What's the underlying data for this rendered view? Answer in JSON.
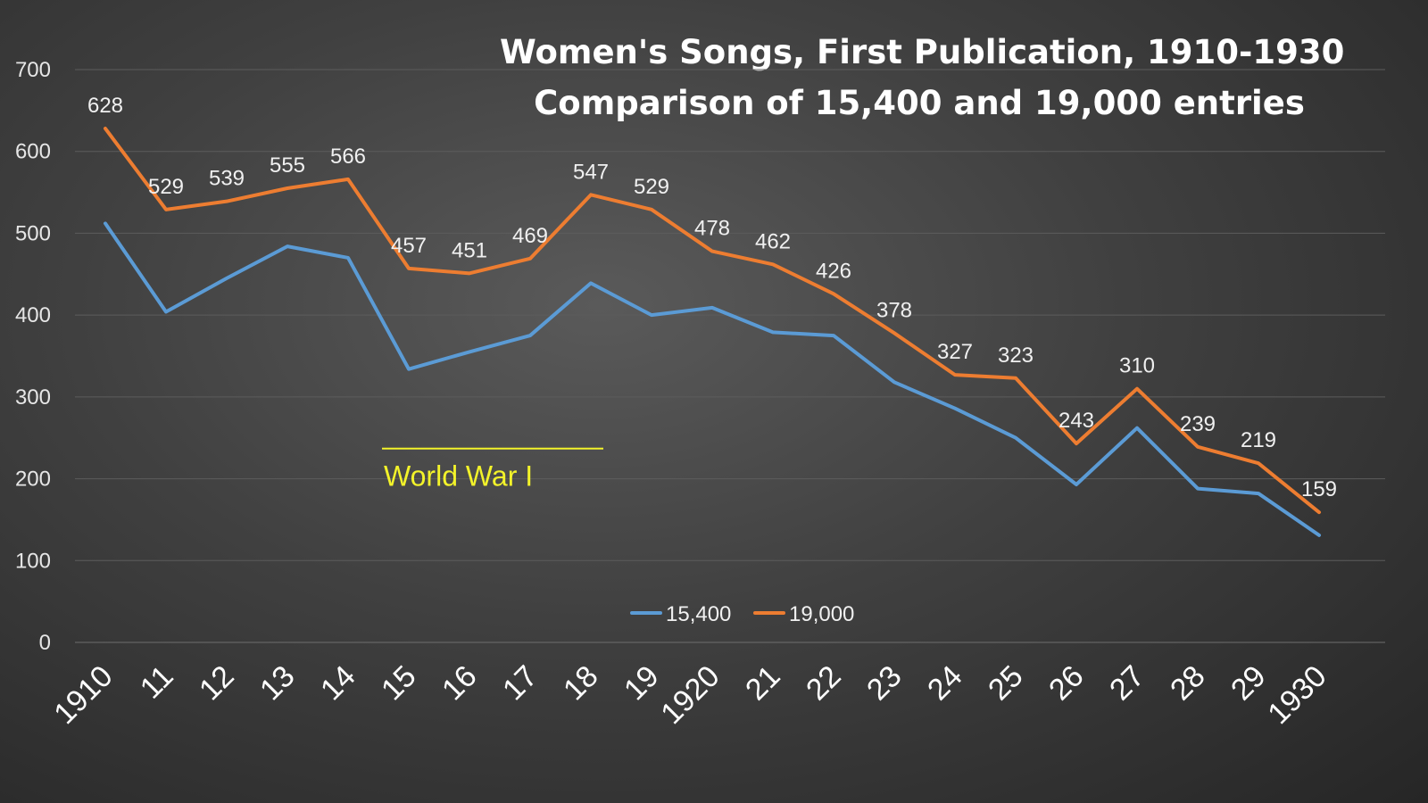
{
  "chart_data": {
    "type": "line",
    "title": "Women's Songs, First Publication, 1910-1930",
    "subtitle": "Comparison of 15,400 and 19,000 entries",
    "categories": [
      "1910",
      "11",
      "12",
      "13",
      "14",
      "15",
      "16",
      "17",
      "18",
      "19",
      "1920",
      "21",
      "22",
      "23",
      "24",
      "25",
      "26",
      "27",
      "28",
      "29",
      "1930"
    ],
    "ylim": [
      0,
      700
    ],
    "yticks": [
      "0",
      "100",
      "200",
      "300",
      "400",
      "500",
      "600",
      "700"
    ],
    "grid": true,
    "legend_position": "bottom-center",
    "series": [
      {
        "name": "15,400",
        "color": "#5b9bd5",
        "values": [
          512,
          404,
          445,
          484,
          470,
          334,
          355,
          375,
          439,
          400,
          409,
          379,
          375,
          318,
          286,
          250,
          193,
          262,
          188,
          182,
          131
        ],
        "show_labels": false
      },
      {
        "name": "19,000",
        "color": "#ed7d31",
        "values": [
          628,
          529,
          539,
          555,
          566,
          457,
          451,
          469,
          547,
          529,
          478,
          462,
          426,
          378,
          327,
          323,
          243,
          310,
          239,
          219,
          159
        ],
        "show_labels": true
      }
    ],
    "annotation": {
      "text": "World War I",
      "from_category": "15",
      "to_category": "18",
      "color": "#f3f32a"
    }
  }
}
